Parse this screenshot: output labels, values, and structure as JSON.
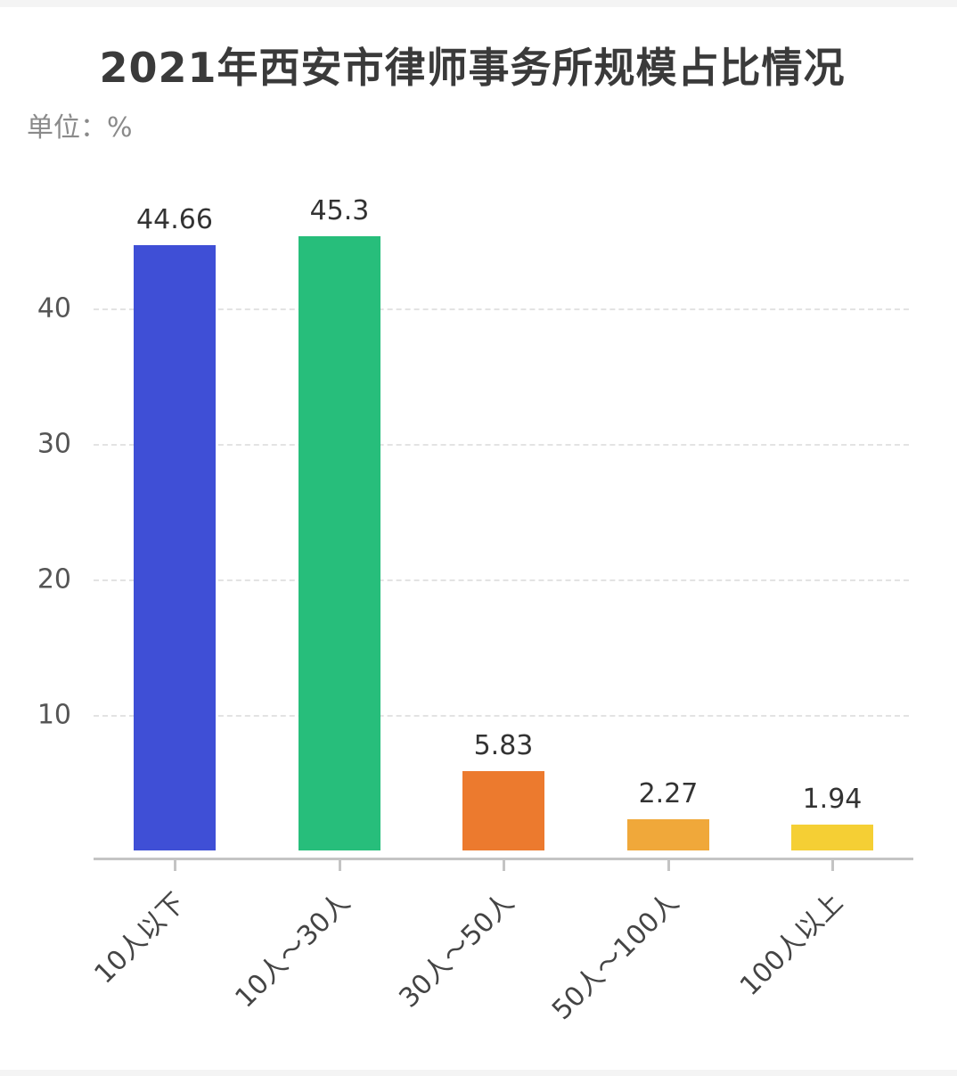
{
  "title": "2021年西安市律师事务所规模占比情况",
  "unit_label": "单位：%",
  "y_ticks": [
    "10",
    "20",
    "30",
    "40"
  ],
  "categories": [
    "10人以下",
    "10人～30人",
    "30人～50人",
    "50人～100人",
    "100人以上"
  ],
  "values": [
    "44.66",
    "45.3",
    "5.83",
    "2.27",
    "1.94"
  ],
  "colors": [
    "#3f4fd6",
    "#27be7b",
    "#ec7a2e",
    "#f0a83a",
    "#f5cf34"
  ],
  "chart_data": {
    "type": "bar",
    "title": "2021年西安市律师事务所规模占比情况",
    "subtitle": "单位：%",
    "categories": [
      "10人以下",
      "10人～30人",
      "30人～50人",
      "50人～100人",
      "100人以上"
    ],
    "values": [
      44.66,
      45.3,
      5.83,
      2.27,
      1.94
    ],
    "colors": [
      "#3f4fd6",
      "#27be7b",
      "#ec7a2e",
      "#f0a83a",
      "#f5cf34"
    ],
    "xlabel": "",
    "ylabel": "",
    "ylim": [
      0,
      50
    ],
    "yticks": [
      10,
      20,
      30,
      40
    ],
    "grid": true,
    "legend": false,
    "data_labels": true
  }
}
